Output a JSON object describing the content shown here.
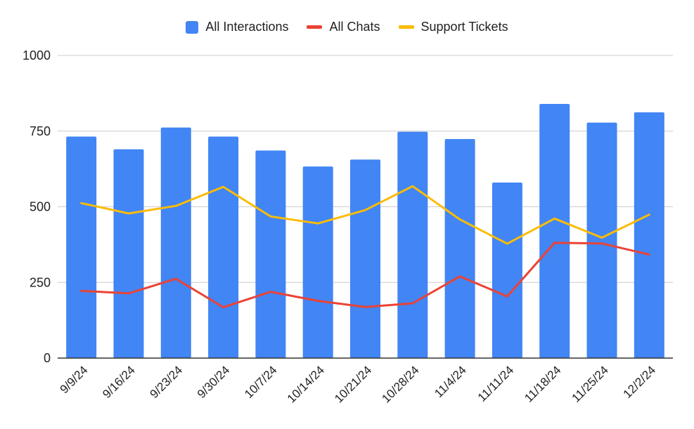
{
  "chart_data": {
    "type": "bar",
    "title": "",
    "xlabel": "",
    "ylabel": "",
    "categories": [
      "9/9/24",
      "9/16/24",
      "9/23/24",
      "9/30/24",
      "10/7/24",
      "10/14/24",
      "10/21/24",
      "10/28/24",
      "11/4/24",
      "11/11/24",
      "11/18/24",
      "11/25/24",
      "12/2/24"
    ],
    "ylim": [
      0,
      1000
    ],
    "yticks": [
      "0",
      "250",
      "500",
      "750",
      "1000"
    ],
    "grid": true,
    "legend_position": "top",
    "series": [
      {
        "name": "All Interactions",
        "type": "bar",
        "color": "#4285f4",
        "values": [
          732,
          690,
          762,
          732,
          686,
          633,
          656,
          748,
          724,
          580,
          840,
          778,
          812
        ]
      },
      {
        "name": "All Chats",
        "type": "line",
        "color": "#ea4335",
        "values": [
          222,
          214,
          262,
          168,
          219,
          189,
          169,
          181,
          270,
          204,
          381,
          379,
          342
        ]
      },
      {
        "name": "Support Tickets",
        "type": "line",
        "color": "#fbbc04",
        "values": [
          512,
          478,
          503,
          566,
          468,
          445,
          489,
          568,
          458,
          378,
          461,
          398,
          474
        ]
      }
    ]
  }
}
